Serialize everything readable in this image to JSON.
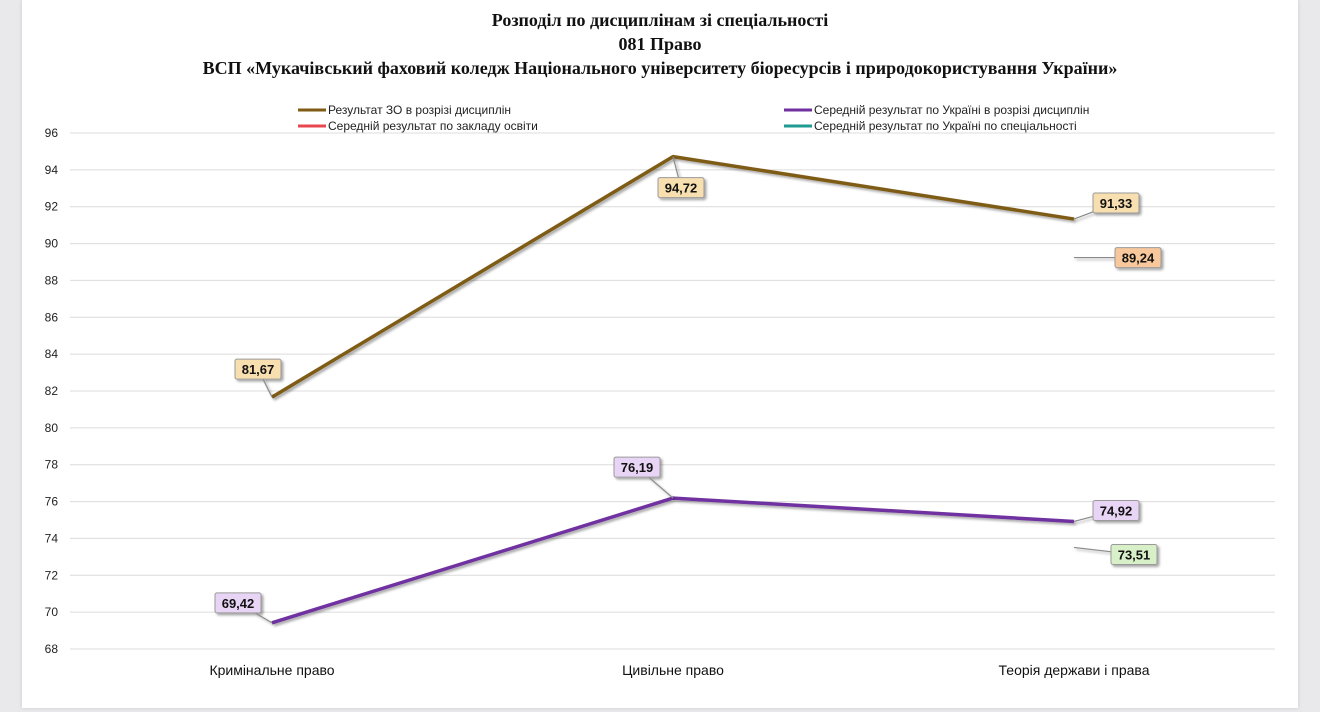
{
  "chart_data": {
    "type": "line",
    "title": [
      "Розподіл по дисциплінам зі спеціальності",
      "081 Право",
      "ВСП «Мукачівський фаховий коледж Національного  університету біоресурсів і природокористування України»"
    ],
    "categories": [
      "Кримінальне право",
      "Цивільне право",
      "Теорія держави і права"
    ],
    "ylim": [
      68,
      96
    ],
    "yticks": [
      96,
      94,
      92,
      90,
      88,
      86,
      84,
      82,
      80,
      78,
      76,
      74,
      72,
      70,
      68
    ],
    "grid": true,
    "legend_position": "top",
    "series": [
      {
        "name": "Результат ЗО в розрізі дисциплін",
        "values": [
          81.67,
          94.72,
          91.33
        ],
        "labels": [
          "81,67",
          "94,72",
          "91,33"
        ],
        "color": "#7f5b14",
        "label_fill": "#f8dfb0",
        "kind": "line"
      },
      {
        "name": "Середній результат по Україні в розрізі дисциплін",
        "values": [
          69.42,
          76.19,
          74.92
        ],
        "labels": [
          "69,42",
          "76,19",
          "74,92"
        ],
        "color": "#7030a0",
        "label_fill": "#e8d4f4",
        "kind": "line"
      },
      {
        "name": "Середній результат по закладу освіти",
        "values": [
          89.24,
          89.24,
          89.24
        ],
        "labels": [
          "89,24"
        ],
        "color": "#e8474f",
        "label_fill": "#f8c89c",
        "kind": "flat"
      },
      {
        "name": "Середній результат по Україні по спеціальності",
        "values": [
          73.51,
          73.51,
          73.51
        ],
        "labels": [
          "73,51"
        ],
        "color": "#1e9a92",
        "label_fill": "#d8f0c8",
        "kind": "flat"
      }
    ]
  }
}
